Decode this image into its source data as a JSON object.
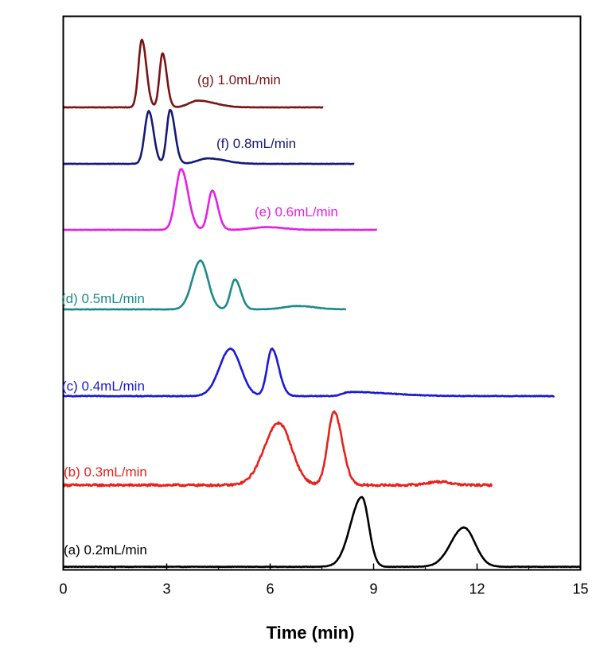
{
  "chart_data": {
    "type": "line",
    "xlabel": "Time (min)",
    "ylabel": "",
    "xlim": [
      0,
      15
    ],
    "x_ticks": [
      "0",
      "3",
      "6",
      "9",
      "12",
      "15"
    ],
    "grid": false,
    "legend": "none",
    "series": [
      {
        "name": "(a) 0.2mL/min",
        "color": "#000000",
        "x_range": [
          0,
          15
        ],
        "baseline": 4,
        "noise": 0.3,
        "peaks": [
          {
            "center": 8.66,
            "height": 103,
            "width_left": 0.33,
            "width_right": 0.2
          },
          {
            "center": 11.62,
            "height": 58,
            "width_left": 0.38,
            "width_right": 0.32
          }
        ]
      },
      {
        "name": "(b) 0.3mL/min",
        "color": "#e8201c",
        "x_range": [
          0,
          12.45
        ],
        "baseline": 0,
        "noise": 1.6,
        "peaks": [
          {
            "center": 6.25,
            "height": 92,
            "width_left": 0.42,
            "width_right": 0.37
          },
          {
            "center": 7.85,
            "height": 108,
            "width_left": 0.18,
            "width_right": 0.24
          },
          {
            "center": 10.9,
            "height": 5,
            "width_left": 0.35,
            "width_right": 0.35
          }
        ]
      },
      {
        "name": "(c) 0.4mL/min",
        "color": "#1a1ad6",
        "x_range": [
          0,
          14.25
        ],
        "baseline": 0,
        "noise": 0.5,
        "peaks": [
          {
            "center": 4.85,
            "height": 70,
            "width_left": 0.32,
            "width_right": 0.3
          },
          {
            "center": 6.05,
            "height": 70,
            "width_left": 0.14,
            "width_right": 0.2
          },
          {
            "center": 8.3,
            "height": 6,
            "width_left": 0.2,
            "width_right": 1.2
          }
        ]
      },
      {
        "name": "(d) 0.5mL/min",
        "color": "#1c8a8a",
        "x_range": [
          0,
          8.2
        ],
        "baseline": 0,
        "noise": 0.3,
        "peaks": [
          {
            "center": 3.98,
            "height": 72,
            "width_left": 0.24,
            "width_right": 0.22
          },
          {
            "center": 4.98,
            "height": 44,
            "width_left": 0.13,
            "width_right": 0.17
          },
          {
            "center": 6.8,
            "height": 5,
            "width_left": 0.4,
            "width_right": 0.5
          }
        ]
      },
      {
        "name": "(e) 0.6mL/min",
        "color": "#e51fe5",
        "x_range": [
          0,
          9.1
        ],
        "baseline": 0,
        "noise": 0.3,
        "peaks": [
          {
            "center": 3.42,
            "height": 90,
            "width_left": 0.16,
            "width_right": 0.2
          },
          {
            "center": 4.32,
            "height": 58,
            "width_left": 0.12,
            "width_right": 0.16
          },
          {
            "center": 5.9,
            "height": 4,
            "width_left": 0.4,
            "width_right": 0.5
          }
        ]
      },
      {
        "name": "(f) 0.8mL/min",
        "color": "#141a78",
        "x_range": [
          0,
          8.45
        ],
        "baseline": 0,
        "noise": 0.3,
        "peaks": [
          {
            "center": 2.48,
            "height": 78,
            "width_left": 0.12,
            "width_right": 0.14
          },
          {
            "center": 3.1,
            "height": 80,
            "width_left": 0.1,
            "width_right": 0.14
          },
          {
            "center": 4.2,
            "height": 8,
            "width_left": 0.3,
            "width_right": 0.5
          }
        ]
      },
      {
        "name": "(g) 1.0mL/min",
        "color": "#7a1414",
        "x_range": [
          0,
          7.55
        ],
        "baseline": 0,
        "noise": 0.3,
        "peaks": [
          {
            "center": 2.28,
            "height": 100,
            "width_left": 0.1,
            "width_right": 0.13
          },
          {
            "center": 2.88,
            "height": 80,
            "width_left": 0.09,
            "width_right": 0.12
          },
          {
            "center": 3.9,
            "height": 10,
            "width_left": 0.25,
            "width_right": 0.5
          }
        ]
      }
    ]
  }
}
